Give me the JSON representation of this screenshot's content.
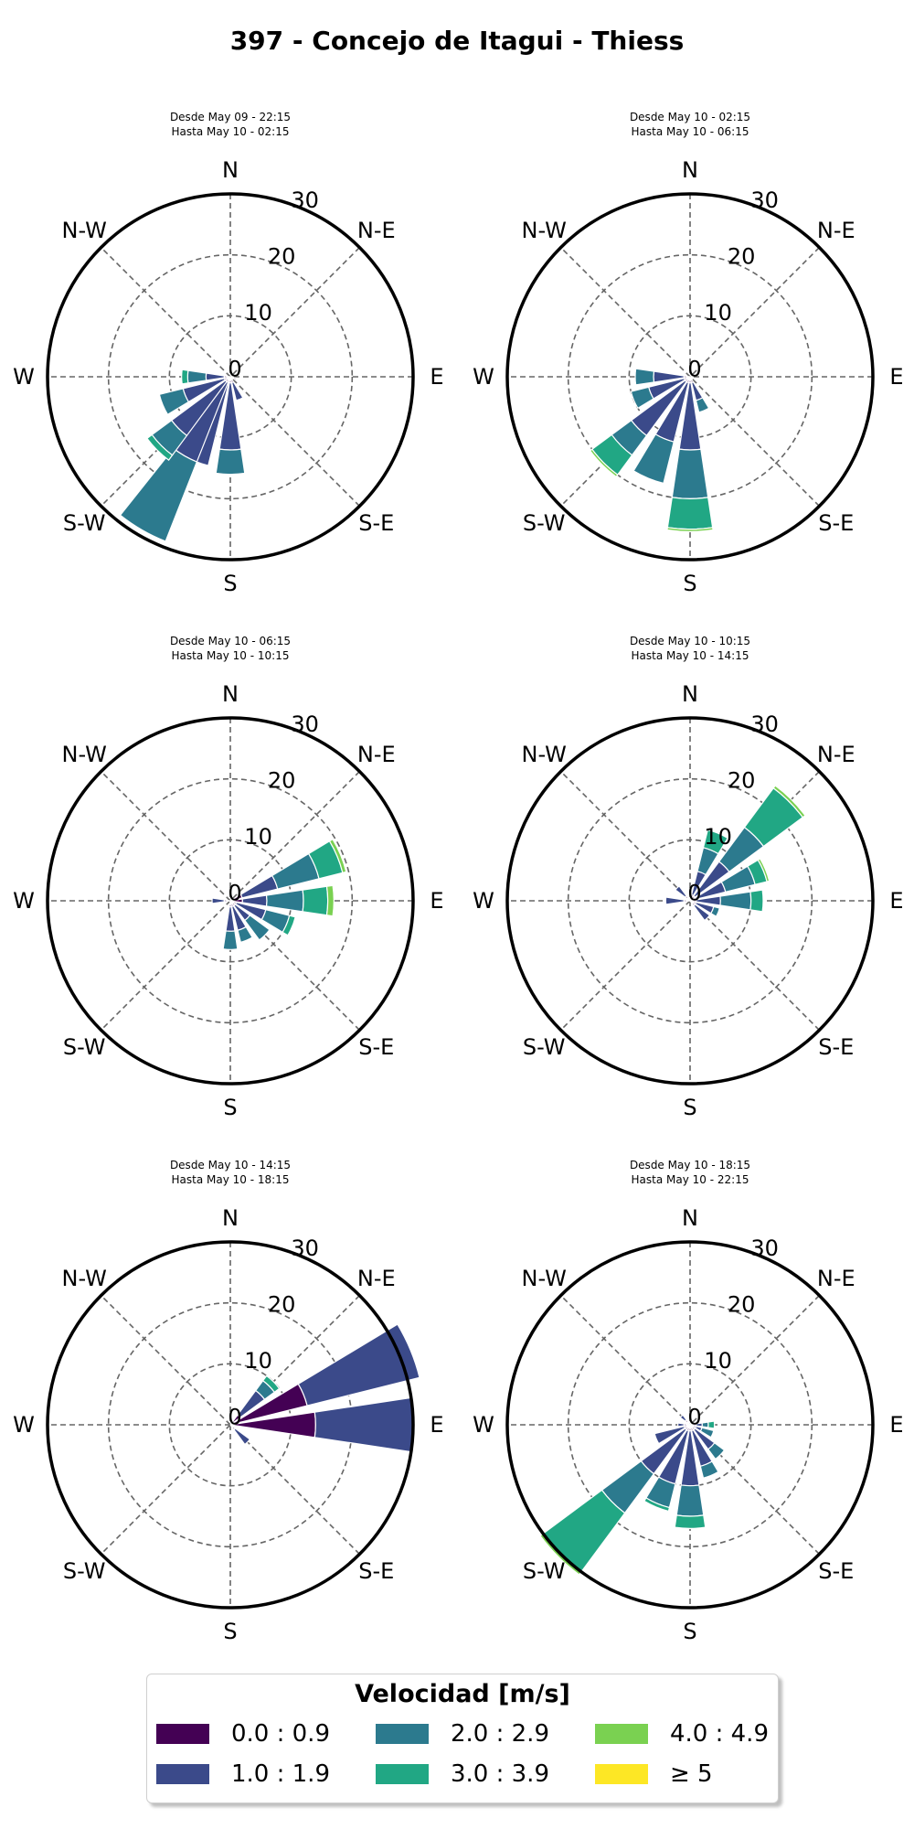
{
  "title": "397 - Concejo de Itagui - Thiess",
  "legend": {
    "title": "Velocidad [m/s]",
    "items": [
      {
        "label": "0.0 : 0.9",
        "color": "#440154"
      },
      {
        "label": "1.0 : 1.9",
        "color": "#3b4a8a"
      },
      {
        "label": "2.0 : 2.9",
        "color": "#2c7a8e"
      },
      {
        "label": "3.0 : 3.9",
        "color": "#21a784"
      },
      {
        "label": "4.0 : 4.9",
        "color": "#7ad151"
      },
      {
        "label": "≥ 5",
        "color": "#fde725"
      }
    ]
  },
  "chart_data": [
    {
      "type": "windrose",
      "subtitle": [
        "Desde May 09 - 22:15",
        "Hasta May 10 - 02:15"
      ],
      "directions": [
        "N",
        "N-E",
        "E",
        "S-E",
        "S",
        "S-W",
        "W",
        "N-W"
      ],
      "radial_ticks": [
        0,
        10,
        20,
        30
      ],
      "rmax": 30,
      "sectors": [
        {
          "angle": 112.5,
          "stack": [
            1,
            1
          ]
        },
        {
          "angle": 157.5,
          "stack": [
            1,
            4
          ]
        },
        {
          "angle": 180,
          "stack": [
            1,
            12,
            16
          ]
        },
        {
          "angle": 202.5,
          "stack": [
            1,
            15
          ]
        },
        {
          "angle": 210,
          "stack": [
            1,
            15,
            29
          ]
        },
        {
          "angle": 225,
          "stack": [
            1,
            12,
            16,
            17
          ]
        },
        {
          "angle": 247.5,
          "stack": [
            1,
            8,
            12
          ]
        },
        {
          "angle": 270,
          "stack": [
            1,
            4,
            7,
            8
          ]
        }
      ]
    },
    {
      "type": "windrose",
      "subtitle": [
        "Desde May 10 - 02:15",
        "Hasta May 10 - 06:15"
      ],
      "directions": [
        "N",
        "N-E",
        "E",
        "S-E",
        "S",
        "S-W",
        "W",
        "N-W"
      ],
      "radial_ticks": [
        0,
        10,
        20,
        30
      ],
      "rmax": 30,
      "sectors": [
        {
          "angle": 157.5,
          "stack": [
            1,
            4,
            6
          ]
        },
        {
          "angle": 180,
          "stack": [
            1,
            12,
            20,
            25,
            25.4
          ]
        },
        {
          "angle": 202.5,
          "stack": [
            1,
            11,
            18
          ]
        },
        {
          "angle": 225,
          "stack": [
            1,
            12,
            16,
            20,
            20.4
          ]
        },
        {
          "angle": 247.5,
          "stack": [
            1,
            7,
            10
          ]
        },
        {
          "angle": 270,
          "stack": [
            1,
            6,
            9
          ]
        }
      ]
    },
    {
      "type": "windrose",
      "subtitle": [
        "Desde May 10 - 06:15",
        "Hasta May 10 - 10:15"
      ],
      "directions": [
        "N",
        "N-E",
        "E",
        "S-E",
        "S",
        "S-W",
        "W",
        "N-W"
      ],
      "radial_ticks": [
        0,
        10,
        20,
        30
      ],
      "rmax": 30,
      "sectors": [
        {
          "angle": 67.5,
          "stack": [
            2,
            8,
            15,
            19,
            19.6
          ]
        },
        {
          "angle": 90,
          "stack": [
            2,
            6,
            12,
            16,
            17
          ]
        },
        {
          "angle": 112.5,
          "stack": [
            1,
            6,
            10,
            11
          ]
        },
        {
          "angle": 135,
          "stack": [
            1,
            4,
            8
          ]
        },
        {
          "angle": 157.5,
          "stack": [
            1,
            5,
            7
          ]
        },
        {
          "angle": 180,
          "stack": [
            1,
            5,
            8
          ]
        },
        {
          "angle": 270,
          "stack": [
            1,
            3
          ]
        }
      ]
    },
    {
      "type": "windrose",
      "subtitle": [
        "Desde May 10 - 10:15",
        "Hasta May 10 - 14:15"
      ],
      "directions": [
        "N",
        "N-E",
        "E",
        "S-E",
        "S",
        "S-W",
        "W",
        "N-W"
      ],
      "radial_ticks": [
        0,
        10,
        20,
        30
      ],
      "rmax": 30,
      "sectors": [
        {
          "angle": 22.5,
          "stack": [
            1,
            5,
            9,
            12
          ]
        },
        {
          "angle": 45,
          "stack": [
            1,
            8,
            15,
            23,
            23.5
          ]
        },
        {
          "angle": 67.5,
          "stack": [
            1,
            6,
            11,
            13,
            13.4
          ]
        },
        {
          "angle": 90,
          "stack": [
            1,
            5,
            10,
            12
          ]
        },
        {
          "angle": 112.5,
          "stack": [
            1,
            4,
            5
          ]
        },
        {
          "angle": 135,
          "stack": [
            1,
            4
          ]
        },
        {
          "angle": 270,
          "stack": [
            1,
            4
          ]
        },
        {
          "angle": 315,
          "stack": [
            1,
            3
          ]
        }
      ]
    },
    {
      "type": "windrose",
      "subtitle": [
        "Desde May 10 - 14:15",
        "Hasta May 10 - 18:15"
      ],
      "directions": [
        "N",
        "N-E",
        "E",
        "S-E",
        "S",
        "S-W",
        "W",
        "N-W"
      ],
      "radial_ticks": [
        0,
        10,
        20,
        30
      ],
      "rmax": 30,
      "sectors": [
        {
          "angle": 45,
          "stack": [
            2,
            7,
            9,
            10
          ]
        },
        {
          "angle": 67.5,
          "stack": [
            13,
            32
          ]
        },
        {
          "angle": 90,
          "stack": [
            14,
            30
          ]
        },
        {
          "angle": 135,
          "stack": [
            1,
            4
          ]
        }
      ]
    },
    {
      "type": "windrose",
      "subtitle": [
        "Desde May 10 - 18:15",
        "Hasta May 10 - 22:15"
      ],
      "directions": [
        "N",
        "N-E",
        "E",
        "S-E",
        "S",
        "S-W",
        "W",
        "N-W"
      ],
      "radial_ticks": [
        0,
        10,
        20,
        30
      ],
      "rmax": 30,
      "sectors": [
        {
          "angle": 90,
          "stack": [
            1,
            2,
            3,
            4
          ]
        },
        {
          "angle": 112.5,
          "stack": [
            1,
            2,
            4
          ]
        },
        {
          "angle": 135,
          "stack": [
            1,
            5,
            7
          ]
        },
        {
          "angle": 157.5,
          "stack": [
            1,
            7,
            9
          ]
        },
        {
          "angle": 180,
          "stack": [
            1,
            10,
            15,
            17
          ]
        },
        {
          "angle": 202.5,
          "stack": [
            1,
            10,
            14,
            14.6
          ]
        },
        {
          "angle": 225,
          "stack": [
            1,
            10,
            18,
            30,
            30.6
          ]
        },
        {
          "angle": 247.5,
          "stack": [
            1,
            6
          ]
        },
        {
          "angle": 270,
          "stack": [
            1,
            2
          ]
        },
        {
          "angle": 315,
          "stack": [
            1,
            2
          ]
        }
      ]
    }
  ]
}
